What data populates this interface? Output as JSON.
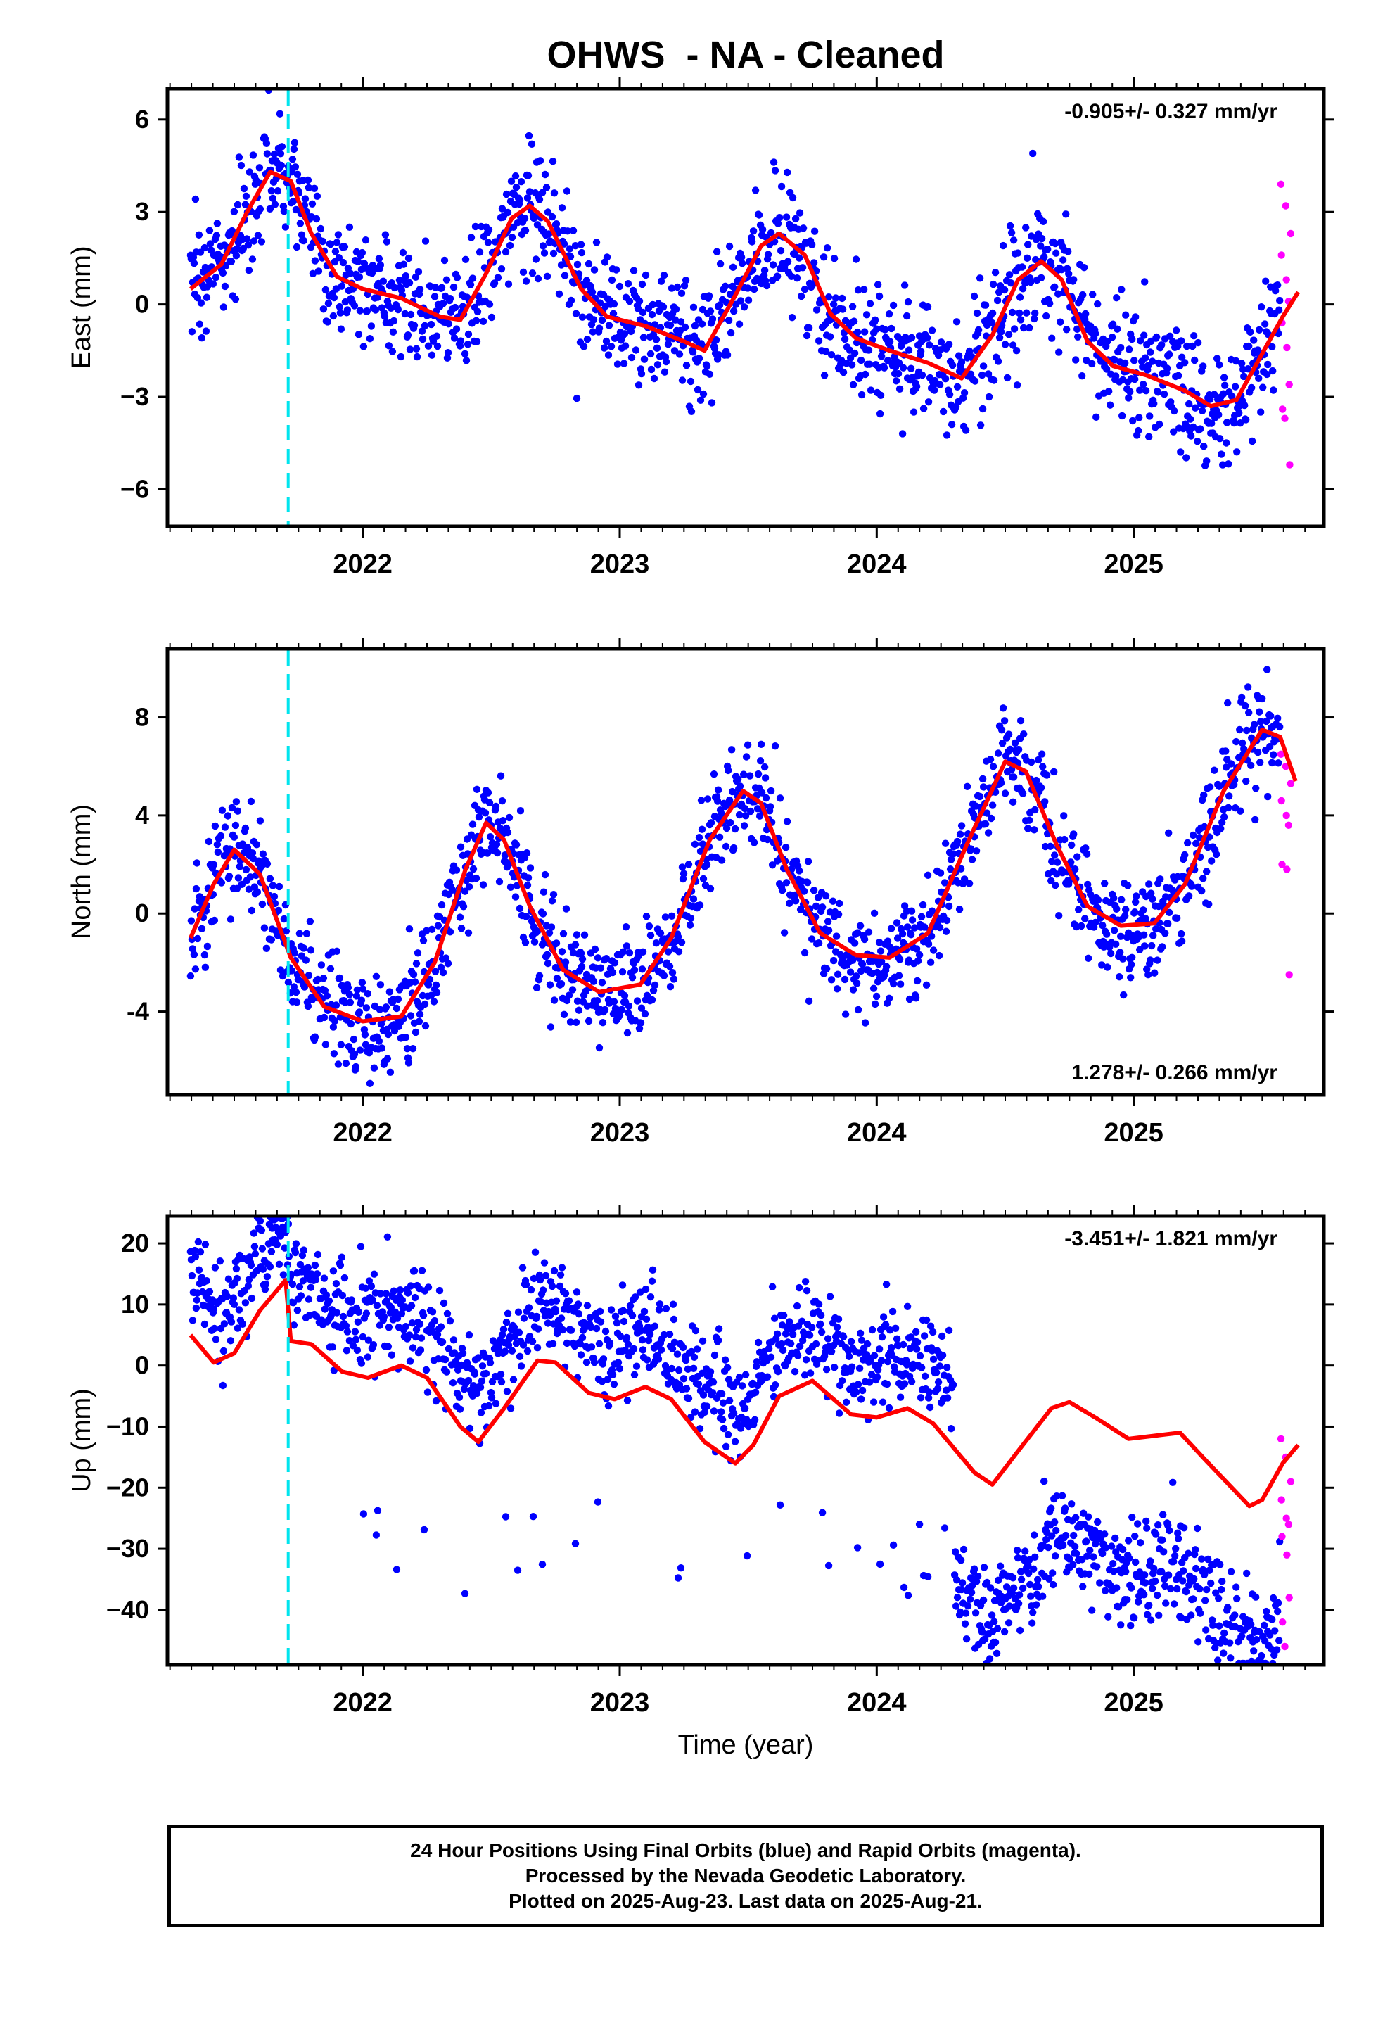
{
  "title": "OHWS  - NA - Cleaned",
  "footer": {
    "line1": "24 Hour Positions Using Final Orbits (blue) and Rapid Orbits (magenta).",
    "line2": "Processed by the Nevada Geodetic Laboratory.",
    "line3": "Plotted on 2025-Aug-23. Last data on 2025-Aug-21."
  },
  "colors": {
    "final": "#0000ff",
    "rapid": "#ff00ff",
    "model": "#ff0000",
    "equipment_change": "#00e5ee"
  },
  "chart_data": [
    {
      "type": "scatter",
      "name": "east",
      "ylabel": "East (mm)",
      "rate_label": "-0.905+/- 0.327 mm/yr",
      "rate_position": "top-right",
      "xlim": [
        2021.24,
        2025.74
      ],
      "ylim": [
        -7.2,
        7.0
      ],
      "yticks": [
        -6,
        -3,
        0,
        3,
        6
      ],
      "ytick_labels": [
        "−6",
        "−3",
        "0",
        "3",
        "6"
      ],
      "xticks": [
        2022,
        2023,
        2024,
        2025
      ],
      "xtick_labels": [
        "2022",
        "2023",
        "2024",
        "2025"
      ],
      "vline": 2021.71,
      "data_start": 2021.33,
      "final_end": 2025.57,
      "data_end": 2025.63,
      "noise_sd": 1.0,
      "model_curve": [
        [
          2021.33,
          0.5
        ],
        [
          2021.45,
          1.3
        ],
        [
          2021.55,
          3.0
        ],
        [
          2021.64,
          4.3
        ],
        [
          2021.72,
          4.0
        ],
        [
          2021.8,
          2.3
        ],
        [
          2021.9,
          0.9
        ],
        [
          2022.0,
          0.5
        ],
        [
          2022.15,
          0.2
        ],
        [
          2022.3,
          -0.4
        ],
        [
          2022.38,
          -0.5
        ],
        [
          2022.48,
          1.0
        ],
        [
          2022.58,
          2.8
        ],
        [
          2022.65,
          3.2
        ],
        [
          2022.72,
          2.7
        ],
        [
          2022.85,
          0.5
        ],
        [
          2022.95,
          -0.4
        ],
        [
          2023.1,
          -0.7
        ],
        [
          2023.25,
          -1.2
        ],
        [
          2023.33,
          -1.5
        ],
        [
          2023.45,
          0.3
        ],
        [
          2023.55,
          1.9
        ],
        [
          2023.62,
          2.3
        ],
        [
          2023.72,
          1.6
        ],
        [
          2023.82,
          -0.3
        ],
        [
          2023.92,
          -1.1
        ],
        [
          2024.05,
          -1.5
        ],
        [
          2024.2,
          -1.9
        ],
        [
          2024.33,
          -2.4
        ],
        [
          2024.45,
          -1.0
        ],
        [
          2024.55,
          0.8
        ],
        [
          2024.64,
          1.4
        ],
        [
          2024.72,
          0.8
        ],
        [
          2024.82,
          -1.2
        ],
        [
          2024.92,
          -2.0
        ],
        [
          2025.05,
          -2.3
        ],
        [
          2025.2,
          -2.8
        ],
        [
          2025.3,
          -3.3
        ],
        [
          2025.4,
          -3.1
        ],
        [
          2025.5,
          -1.6
        ],
        [
          2025.58,
          -0.4
        ],
        [
          2025.64,
          0.4
        ]
      ],
      "rapid_values": [
        3.9,
        3.2,
        2.3,
        1.6,
        0.8,
        0.1,
        -0.6,
        -1.4,
        -2.6,
        -3.4,
        -3.7,
        -5.2
      ]
    },
    {
      "type": "scatter",
      "name": "north",
      "ylabel": "North (mm)",
      "rate_label": "1.278+/- 0.266 mm/yr",
      "rate_position": "bottom-right",
      "xlim": [
        2021.24,
        2025.74
      ],
      "ylim": [
        -7.4,
        10.8
      ],
      "yticks": [
        -4,
        0,
        4,
        8
      ],
      "ytick_labels": [
        "-4",
        "0",
        "4",
        "8"
      ],
      "xticks": [
        2022,
        2023,
        2024,
        2025
      ],
      "xtick_labels": [
        "2022",
        "2023",
        "2024",
        "2025"
      ],
      "vline": 2021.71,
      "data_start": 2021.33,
      "final_end": 2025.57,
      "data_end": 2025.63,
      "noise_sd": 1.1,
      "model_curve": [
        [
          2021.33,
          -1.0
        ],
        [
          2021.42,
          1.2
        ],
        [
          2021.5,
          2.6
        ],
        [
          2021.6,
          1.6
        ],
        [
          2021.72,
          -1.8
        ],
        [
          2021.85,
          -3.8
        ],
        [
          2022.0,
          -4.4
        ],
        [
          2022.15,
          -4.2
        ],
        [
          2022.28,
          -2.0
        ],
        [
          2022.4,
          1.8
        ],
        [
          2022.48,
          3.7
        ],
        [
          2022.55,
          3.0
        ],
        [
          2022.65,
          0.3
        ],
        [
          2022.78,
          -2.3
        ],
        [
          2022.92,
          -3.2
        ],
        [
          2023.08,
          -2.9
        ],
        [
          2023.2,
          -1.0
        ],
        [
          2023.35,
          3.0
        ],
        [
          2023.48,
          5.0
        ],
        [
          2023.55,
          4.5
        ],
        [
          2023.65,
          1.8
        ],
        [
          2023.78,
          -0.8
        ],
        [
          2023.92,
          -1.7
        ],
        [
          2024.05,
          -1.8
        ],
        [
          2024.2,
          -0.8
        ],
        [
          2024.35,
          2.8
        ],
        [
          2024.5,
          6.2
        ],
        [
          2024.58,
          5.8
        ],
        [
          2024.7,
          2.8
        ],
        [
          2024.82,
          0.3
        ],
        [
          2024.95,
          -0.5
        ],
        [
          2025.08,
          -0.4
        ],
        [
          2025.2,
          1.2
        ],
        [
          2025.35,
          5.0
        ],
        [
          2025.5,
          7.5
        ],
        [
          2025.57,
          7.2
        ],
        [
          2025.63,
          5.4
        ]
      ],
      "rapid_values": [
        6.5,
        6.0,
        5.3,
        4.6,
        4.0,
        3.6,
        2.0,
        1.8,
        -2.5
      ]
    },
    {
      "type": "scatter",
      "name": "up",
      "ylabel": "Up (mm)",
      "xlabel": "Time (year)",
      "rate_label": "-3.451+/- 1.821 mm/yr",
      "rate_position": "top-right",
      "xlim": [
        2021.24,
        2025.74
      ],
      "ylim": [
        -49,
        24.5
      ],
      "yticks": [
        -40,
        -30,
        -20,
        -10,
        0,
        10,
        20
      ],
      "ytick_labels": [
        "−40",
        "−30",
        "−20",
        "−10",
        "0",
        "10",
        "20"
      ],
      "xticks": [
        2022,
        2023,
        2024,
        2025
      ],
      "xtick_labels": [
        "2022",
        "2023",
        "2024",
        "2025"
      ],
      "vline": 2021.71,
      "data_start": 2021.33,
      "final_end": 2025.57,
      "data_end": 2025.63,
      "noise_sd": 4.0,
      "model_curve": [
        [
          2021.33,
          5.0
        ],
        [
          2021.42,
          0.5
        ],
        [
          2021.5,
          2.0
        ],
        [
          2021.6,
          9.0
        ],
        [
          2021.7,
          14.0
        ],
        [
          2021.72,
          4.0
        ],
        [
          2021.8,
          3.5
        ],
        [
          2021.92,
          -1.0
        ],
        [
          2022.02,
          -2.0
        ],
        [
          2022.15,
          0.0
        ],
        [
          2022.25,
          -2.0
        ],
        [
          2022.38,
          -10.0
        ],
        [
          2022.45,
          -12.5
        ],
        [
          2022.55,
          -7.0
        ],
        [
          2022.68,
          0.8
        ],
        [
          2022.75,
          0.5
        ],
        [
          2022.88,
          -4.5
        ],
        [
          2022.98,
          -5.5
        ],
        [
          2023.1,
          -3.5
        ],
        [
          2023.2,
          -5.5
        ],
        [
          2023.33,
          -12.5
        ],
        [
          2023.45,
          -16.0
        ],
        [
          2023.52,
          -13.0
        ],
        [
          2023.62,
          -5.0
        ],
        [
          2023.75,
          -2.5
        ],
        [
          2023.9,
          -8.0
        ],
        [
          2024.0,
          -8.5
        ],
        [
          2024.12,
          -7.0
        ],
        [
          2024.22,
          -9.5
        ],
        [
          2024.38,
          -17.5
        ],
        [
          2024.45,
          -19.5
        ],
        [
          2024.55,
          -14.0
        ],
        [
          2024.68,
          -7.0
        ],
        [
          2024.75,
          -6.0
        ],
        [
          2024.85,
          -8.5
        ],
        [
          2024.98,
          -12.0
        ],
        [
          2025.08,
          -11.5
        ],
        [
          2025.18,
          -11.0
        ],
        [
          2025.28,
          -15.5
        ],
        [
          2025.45,
          -23.0
        ],
        [
          2025.5,
          -22.0
        ],
        [
          2025.58,
          -16.0
        ],
        [
          2025.64,
          -13.0
        ]
      ],
      "rapid_values": [
        -12.0,
        -15.0,
        -19.0,
        -22.0,
        -25.0,
        -26.0,
        -28.0,
        -31.0,
        -38.0,
        -42.0,
        -46.0
      ]
    }
  ]
}
